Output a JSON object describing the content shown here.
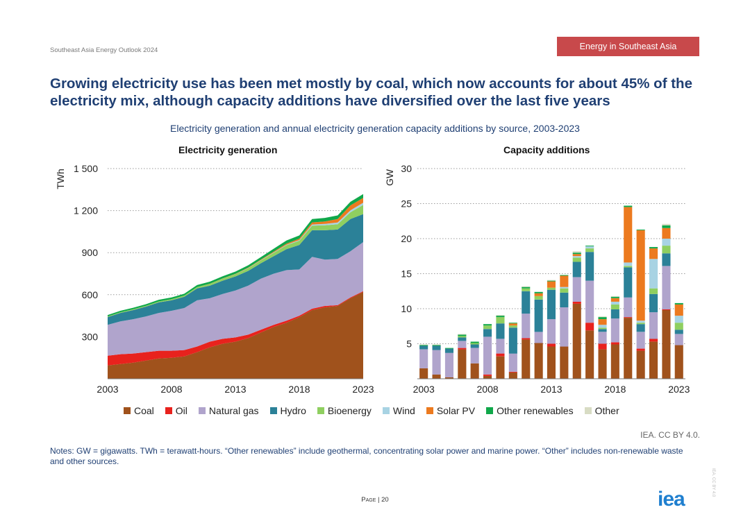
{
  "header": {
    "report": "Southeast Asia Energy Outlook 2024",
    "section": "Energy in Southeast Asia"
  },
  "headline": "Growing electricity use has been met mostly by coal, which now accounts for about 45% of the electricity mix, although capacity additions have diversified over the last five years",
  "figure_title": "Electricity generation and annual electricity generation capacity additions by source, 2003-2023",
  "legend": [
    {
      "name": "Coal",
      "color": "#a0521c"
    },
    {
      "name": "Oil",
      "color": "#e8221d"
    },
    {
      "name": "Natural gas",
      "color": "#b0a4cc"
    },
    {
      "name": "Hydro",
      "color": "#2b8198"
    },
    {
      "name": "Bioenergy",
      "color": "#8fcf60"
    },
    {
      "name": "Wind",
      "color": "#a8d3e3"
    },
    {
      "name": "Solar PV",
      "color": "#ec7a1f"
    },
    {
      "name": "Other renewables",
      "color": "#10a84a"
    },
    {
      "name": "Other",
      "color": "#d8dcc4"
    }
  ],
  "chart_data": [
    {
      "type": "area",
      "title": "Electricity generation",
      "ylabel": "TWh",
      "ylim": [
        0,
        1500
      ],
      "yticks": [
        300,
        600,
        900,
        1200,
        1500
      ],
      "ytick_labels": [
        "300",
        "600",
        "900",
        "1 200",
        "1 500"
      ],
      "xticks": [
        2003,
        2008,
        2013,
        2018,
        2023
      ],
      "x": [
        2003,
        2004,
        2005,
        2006,
        2007,
        2008,
        2009,
        2010,
        2011,
        2012,
        2013,
        2014,
        2015,
        2016,
        2017,
        2018,
        2019,
        2020,
        2021,
        2022,
        2023
      ],
      "series": [
        {
          "name": "Coal",
          "values": [
            95,
            105,
            115,
            130,
            145,
            150,
            160,
            190,
            225,
            250,
            265,
            290,
            330,
            370,
            400,
            440,
            490,
            510,
            520,
            575,
            620
          ]
        },
        {
          "name": "Oil",
          "values": [
            70,
            70,
            65,
            60,
            55,
            50,
            45,
            40,
            40,
            35,
            30,
            25,
            20,
            15,
            15,
            10,
            10,
            10,
            5,
            5,
            5
          ]
        },
        {
          "name": "Natural gas",
          "values": [
            220,
            235,
            245,
            255,
            270,
            285,
            300,
            330,
            310,
            320,
            335,
            350,
            365,
            365,
            360,
            330,
            370,
            330,
            330,
            330,
            350
          ]
        },
        {
          "name": "Hydro",
          "values": [
            55,
            60,
            65,
            70,
            75,
            75,
            80,
            85,
            90,
            95,
            100,
            105,
            110,
            125,
            150,
            175,
            190,
            210,
            210,
            230,
            200
          ]
        },
        {
          "name": "Bioenergy",
          "values": [
            5,
            5,
            6,
            6,
            7,
            8,
            9,
            10,
            12,
            14,
            16,
            18,
            20,
            24,
            28,
            30,
            33,
            35,
            38,
            48,
            65
          ]
        },
        {
          "name": "Wind",
          "values": [
            0,
            0,
            0,
            0,
            0,
            0,
            0,
            0,
            0,
            1,
            1,
            2,
            2,
            3,
            4,
            5,
            8,
            10,
            12,
            14,
            16
          ]
        },
        {
          "name": "Solar PV",
          "values": [
            0,
            0,
            0,
            0,
            0,
            0,
            0,
            0,
            1,
            1,
            2,
            3,
            4,
            6,
            8,
            10,
            15,
            18,
            25,
            35,
            35
          ]
        },
        {
          "name": "Other renewables",
          "values": [
            10,
            10,
            11,
            11,
            12,
            12,
            13,
            14,
            15,
            15,
            16,
            17,
            18,
            20,
            22,
            23,
            24,
            25,
            26,
            26,
            27
          ]
        },
        {
          "name": "Other",
          "values": [
            0,
            0,
            0,
            0,
            0,
            0,
            0,
            0,
            0,
            0,
            0,
            0,
            0,
            0,
            0,
            0,
            0,
            0,
            0,
            0,
            0
          ]
        }
      ]
    },
    {
      "type": "bar",
      "title": "Capacity additions",
      "ylabel": "GW",
      "ylim": [
        0,
        30
      ],
      "yticks": [
        5,
        10,
        15,
        20,
        25,
        30
      ],
      "ytick_labels": [
        "5",
        "10",
        "15",
        "20",
        "25",
        "30"
      ],
      "xticks": [
        2003,
        2008,
        2013,
        2018,
        2023
      ],
      "x": [
        2003,
        2004,
        2005,
        2006,
        2007,
        2008,
        2009,
        2010,
        2011,
        2012,
        2013,
        2014,
        2015,
        2016,
        2017,
        2018,
        2019,
        2020,
        2021,
        2022,
        2023
      ],
      "series": [
        {
          "name": "Coal",
          "values": [
            1.5,
            0.6,
            0.2,
            4.2,
            2.2,
            0.4,
            3.2,
            0.9,
            5.6,
            5.1,
            4.6,
            4.6,
            10.7,
            6.9,
            4.2,
            4.9,
            8.7,
            4.0,
            5.3,
            9.8,
            4.8
          ]
        },
        {
          "name": "Oil",
          "values": [
            0,
            0,
            0,
            0.2,
            0,
            0.2,
            0.4,
            0.1,
            0.2,
            0,
            0.4,
            0,
            0.3,
            1.1,
            0.8,
            0.3,
            0.1,
            0.3,
            0.4,
            0.1,
            0
          ]
        },
        {
          "name": "Natural gas",
          "values": [
            2.7,
            3.5,
            3.5,
            1.0,
            2.2,
            5.4,
            2.1,
            2.6,
            3.5,
            1.6,
            3.5,
            5.6,
            3.5,
            6.0,
            1.7,
            3.4,
            2.8,
            2.4,
            3.8,
            6.2,
            1.6
          ]
        },
        {
          "name": "Hydro",
          "values": [
            0.5,
            0.6,
            0.6,
            0.5,
            0.5,
            1.1,
            2.2,
            3.7,
            3.2,
            4.6,
            4.2,
            2.1,
            2.2,
            4.1,
            0.4,
            1.3,
            4.3,
            1.1,
            2.6,
            1.8,
            0.6
          ]
        },
        {
          "name": "Bioenergy",
          "values": [
            0,
            0,
            0,
            0.2,
            0.2,
            0.5,
            0.9,
            0.3,
            0.4,
            0.5,
            0.3,
            0.6,
            0.6,
            0.5,
            0.2,
            0.7,
            0.2,
            0.2,
            0.8,
            1.1,
            1.0
          ]
        },
        {
          "name": "Wind",
          "values": [
            0,
            0,
            0,
            0,
            0,
            0,
            0,
            0,
            0,
            0,
            0,
            0.2,
            0.2,
            0.3,
            0.4,
            0.4,
            0.5,
            0.3,
            4.2,
            1.0,
            1.0
          ]
        },
        {
          "name": "Solar PV",
          "values": [
            0,
            0,
            0,
            0,
            0,
            0,
            0,
            0.3,
            0,
            0.4,
            0.9,
            1.6,
            0.3,
            0,
            0.8,
            0.5,
            7.9,
            12.9,
            1.5,
            1.5,
            1.6
          ]
        },
        {
          "name": "Other renewables",
          "values": [
            0.1,
            0.1,
            0.1,
            0.2,
            0.2,
            0.2,
            0.2,
            0.1,
            0.2,
            0.2,
            0.1,
            0.1,
            0.2,
            0.1,
            0.3,
            0.2,
            0.2,
            0.1,
            0.2,
            0.4,
            0.2
          ]
        },
        {
          "name": "Other",
          "values": [
            0.1,
            0.1,
            0,
            0.1,
            0,
            0,
            0.1,
            0,
            0.1,
            0,
            0.1,
            0,
            0.2,
            0,
            0.1,
            0.1,
            0,
            0,
            0,
            0.2,
            0
          ]
        }
      ]
    }
  ],
  "credit": "IEA. CC BY 4.0.",
  "notes": "Notes: GW = gigawatts. TWh = terawatt-hours. “Other renewables” include geothermal, concentrating solar power and marine power. “Other” includes non-renewable waste and other sources.",
  "page_prefix": "Page",
  "page_number": "20",
  "logo_text": "iea",
  "vertical_credit": "IEA. CC BY 4.0"
}
